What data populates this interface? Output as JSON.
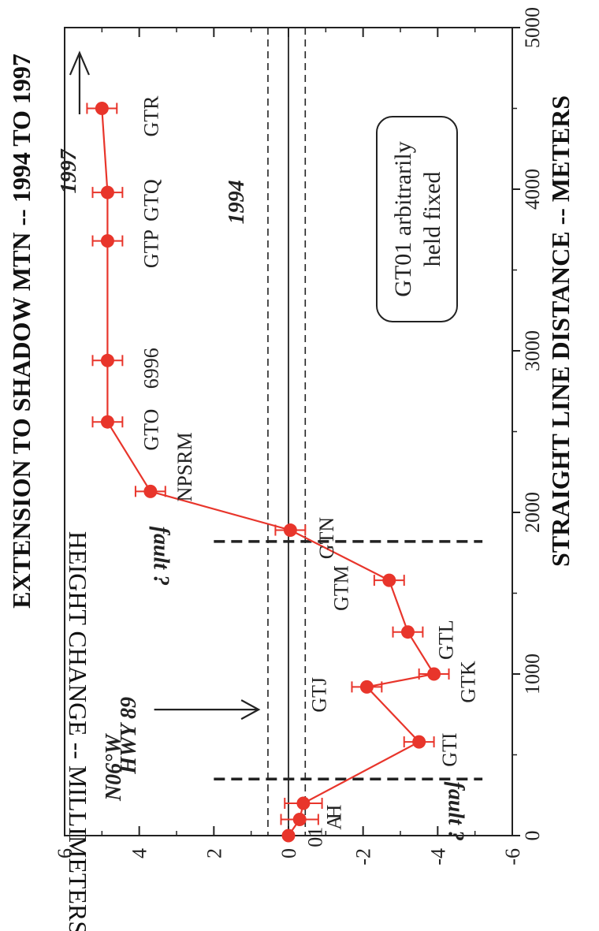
{
  "chart_data": {
    "type": "scatter",
    "title": "EXTENSION TO SHADOW MTN  --  1994 TO 1997",
    "xlabel": "STRAIGHT LINE DISTANCE    --    METERS",
    "ylabel": "HEIGHT CHANGE  --  MILLIMETERS",
    "xlim": [
      0,
      5000
    ],
    "ylim": [
      -6,
      6
    ],
    "x_ticks": [
      "0",
      "1000",
      "2000",
      "3000",
      "4000",
      "5000"
    ],
    "y_ticks": [
      "6",
      "4",
      "2",
      "0",
      "-2",
      "-4",
      "-6"
    ],
    "series": [
      {
        "name": "1997",
        "color": "#e8352b",
        "points": [
          {
            "x": 0,
            "y": 0.0,
            "err": 0.0
          },
          {
            "x": 100,
            "y": -0.3,
            "err": 0.5
          },
          {
            "x": 200,
            "y": -0.4,
            "err": 0.5
          },
          {
            "x": 580,
            "y": -3.5,
            "err": 0.4
          },
          {
            "x": 920,
            "y": -2.1,
            "err": 0.4
          },
          {
            "x": 1000,
            "y": -3.9,
            "err": 0.4
          },
          {
            "x": 1260,
            "y": -3.2,
            "err": 0.4
          },
          {
            "x": 1580,
            "y": -2.7,
            "err": 0.4
          },
          {
            "x": 1890,
            "y": -0.05,
            "err": 0.4
          },
          {
            "x": 2130,
            "y": 3.7,
            "err": 0.4
          },
          {
            "x": 2560,
            "y": 4.85,
            "err": 0.4
          },
          {
            "x": 2940,
            "y": 4.85,
            "err": 0.4
          },
          {
            "x": 3680,
            "y": 4.85,
            "err": 0.4
          },
          {
            "x": 3980,
            "y": 4.85,
            "err": 0.4
          },
          {
            "x": 4500,
            "y": 5.0,
            "err": 0.4
          }
        ]
      }
    ],
    "reference_lines": {
      "solid_y": 0.0,
      "dashed_y": [
        0.55,
        -0.45
      ],
      "fault_x": [
        350,
        1820
      ]
    },
    "point_labels": [
      {
        "text": "01",
        "x": 40,
        "y": -0.9
      },
      {
        "text": "A",
        "x": 130,
        "y": -1.4
      },
      {
        "text": "H",
        "x": 195,
        "y": -1.4
      },
      {
        "text": "GTI",
        "x": 580,
        "y": -4.5
      },
      {
        "text": "GTJ",
        "x": 920,
        "y": -1.0
      },
      {
        "text": "GTK",
        "x": 1000,
        "y": -5.0
      },
      {
        "text": "GTL",
        "x": 1260,
        "y": -4.4
      },
      {
        "text": "GTM",
        "x": 1580,
        "y": -1.6
      },
      {
        "text": "GTN",
        "x": 1890,
        "y": -1.2
      },
      {
        "text": "NPSRM",
        "x": 2330,
        "y": 2.6
      },
      {
        "text": "GTO",
        "x": 2560,
        "y": 3.5
      },
      {
        "text": "6996",
        "x": 2940,
        "y": 3.5
      },
      {
        "text": "GTP",
        "x": 3680,
        "y": 3.5
      },
      {
        "text": "GTQ",
        "x": 3980,
        "y": 3.5
      },
      {
        "text": "GTR",
        "x": 4500,
        "y": 3.5
      }
    ],
    "annotations": [
      {
        "text": "N06°W",
        "x": 420,
        "y": 4.5,
        "style": "italic"
      },
      {
        "text": "HWY 89",
        "x": 620,
        "y": 4.1,
        "style": "italic"
      },
      {
        "text": "fault ?",
        "x": 150,
        "y": -4.3,
        "style": "italic"
      },
      {
        "text": "fault ?",
        "x": 1730,
        "y": 3.6,
        "style": "italic"
      },
      {
        "text": "1997",
        "x": 4110,
        "y": 5.7,
        "style": "italic"
      },
      {
        "text": "1994",
        "x": 3920,
        "y": 1.2,
        "style": "italic"
      }
    ],
    "note_box": [
      "GT01 arbitrarily",
      "held fixed"
    ]
  }
}
